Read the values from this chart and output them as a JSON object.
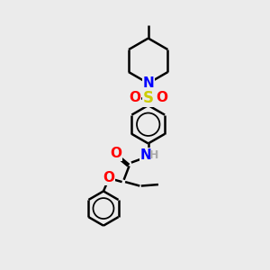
{
  "bg_color": "#ebebeb",
  "bond_color": "#000000",
  "bond_width": 1.8,
  "atom_colors": {
    "N": "#0000ff",
    "O": "#ff0000",
    "S": "#cccc00",
    "H": "#aaaaaa",
    "C": "#000000"
  },
  "font_size": 10,
  "aromatic_color": "#000000"
}
